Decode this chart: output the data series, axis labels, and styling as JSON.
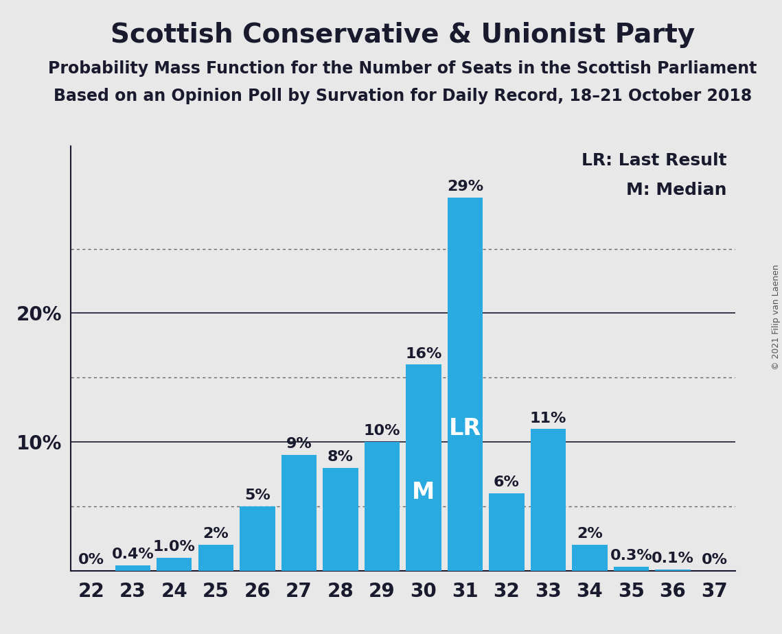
{
  "seats": [
    22,
    23,
    24,
    25,
    26,
    27,
    28,
    29,
    30,
    31,
    32,
    33,
    34,
    35,
    36,
    37
  ],
  "probabilities": [
    0.0,
    0.4,
    1.0,
    2.0,
    5.0,
    9.0,
    8.0,
    10.0,
    16.0,
    29.0,
    6.0,
    11.0,
    2.0,
    0.3,
    0.1,
    0.0
  ],
  "bar_color": "#29ABE2",
  "background_color": "#E8E8E8",
  "title": "Scottish Conservative & Unionist Party",
  "subtitle1": "Probability Mass Function for the Number of Seats in the Scottish Parliament",
  "subtitle2": "Based on an Opinion Poll by Survation for Daily Record, 18–21 October 2018",
  "copyright": "© 2021 Filip van Laenen",
  "legend_line1": "LR: Last Result",
  "legend_line2": "M: Median",
  "lr_seat": 31,
  "median_seat": 30,
  "ylim": [
    0,
    33
  ],
  "solid_gridlines": [
    10,
    20
  ],
  "dotted_gridlines": [
    5,
    15,
    25
  ],
  "ytick_positions": [
    0,
    10,
    20
  ],
  "title_fontsize": 28,
  "subtitle_fontsize": 17,
  "tick_fontsize": 20,
  "bar_label_fontsize": 16,
  "legend_fontsize": 18,
  "lr_label_fontsize": 24,
  "m_label_fontsize": 24
}
